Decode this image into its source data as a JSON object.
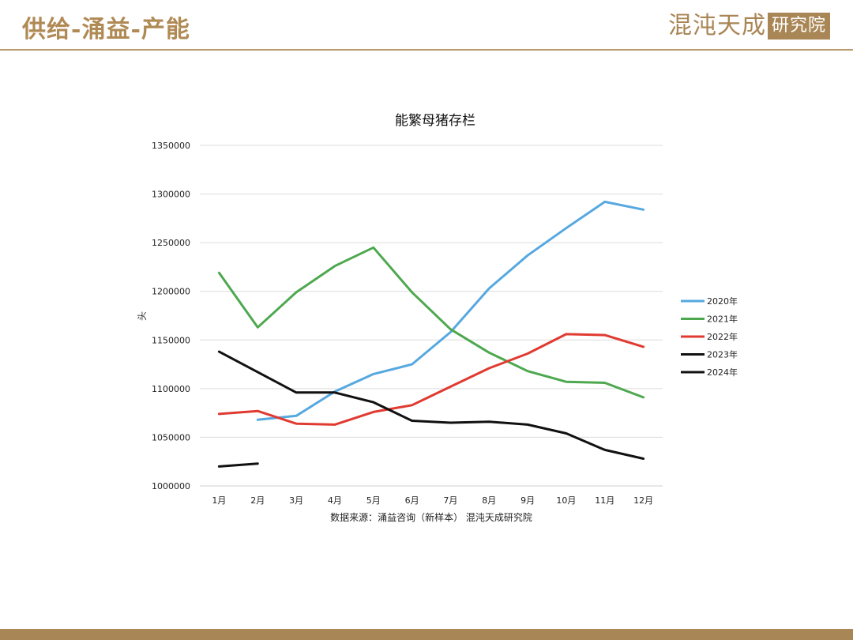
{
  "page": {
    "title": "供给-涌益-产能",
    "logo_text": "混沌天成",
    "logo_box_text": "研究院"
  },
  "chart_data": {
    "type": "line",
    "title": "能繁母猪存栏",
    "ylabel": "头",
    "xlabel": "",
    "source": "数据来源：涌益咨询（新样本） 混沌天成研究院",
    "categories": [
      "1月",
      "2月",
      "3月",
      "4月",
      "5月",
      "6月",
      "7月",
      "8月",
      "9月",
      "10月",
      "11月",
      "12月"
    ],
    "ylim": [
      1000000,
      1350000
    ],
    "yticks": [
      1000000,
      1050000,
      1100000,
      1150000,
      1200000,
      1250000,
      1300000,
      1350000
    ],
    "grid": true,
    "legend_position": "right",
    "series": [
      {
        "name": "2020年",
        "color": "#56a8e0",
        "values": [
          null,
          1068000,
          1072000,
          1097000,
          1115000,
          1125000,
          1158000,
          1203000,
          1237000,
          1265000,
          1292000,
          1284000
        ]
      },
      {
        "name": "2021年",
        "color": "#4ea84f",
        "values": [
          1219000,
          1163000,
          1199000,
          1226000,
          1245000,
          1199000,
          1161000,
          1137000,
          1118000,
          1107000,
          1106000,
          1091000
        ]
      },
      {
        "name": "2022年",
        "color": "#e03a31",
        "values": [
          1074000,
          1077000,
          1064000,
          1063000,
          1076000,
          1083000,
          1102000,
          1121000,
          1136000,
          1156000,
          1155000,
          1143000
        ]
      },
      {
        "name": "2023年",
        "color": "#111111",
        "values": [
          1138000,
          1117000,
          1096000,
          1096000,
          1086000,
          1067000,
          1065000,
          1066000,
          1063000,
          1054000,
          1037000,
          1028000
        ]
      },
      {
        "name": "2024年",
        "color": "#111111",
        "values": [
          1020000,
          1023000,
          null,
          null,
          null,
          null,
          null,
          null,
          null,
          null,
          null,
          null
        ]
      }
    ]
  }
}
